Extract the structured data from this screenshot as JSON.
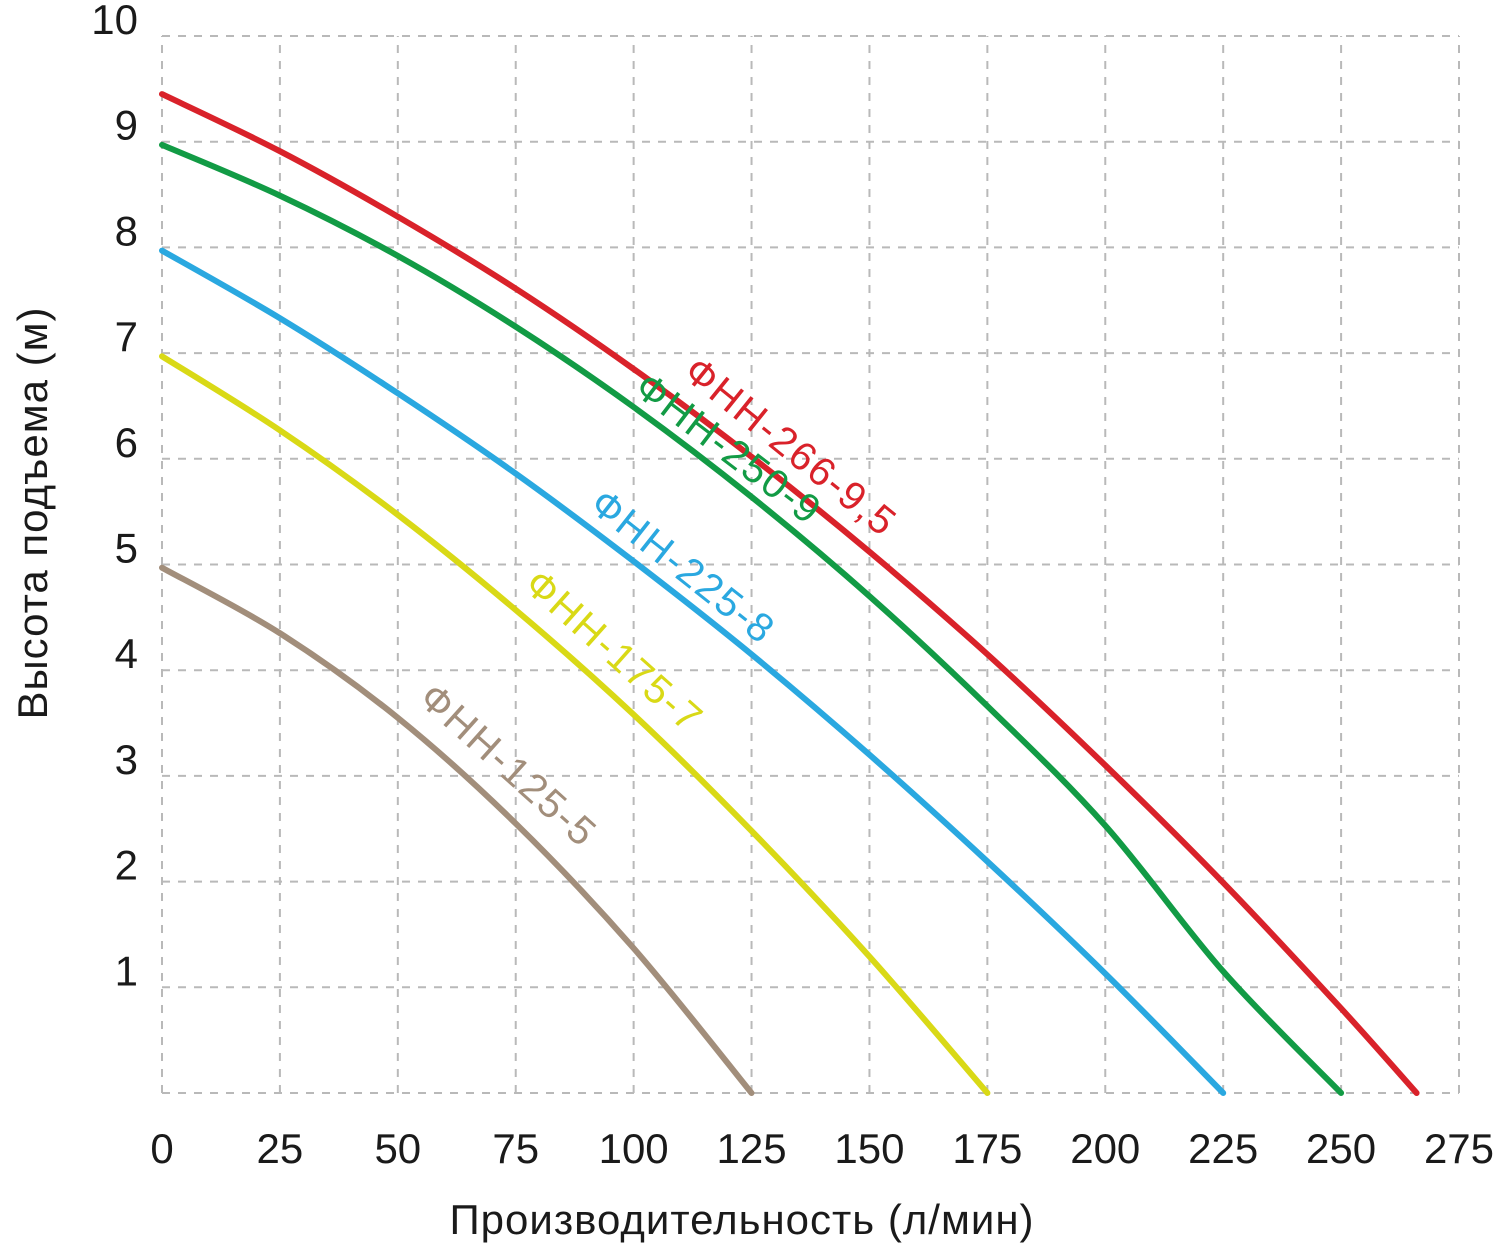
{
  "figure": {
    "background": "#ffffff",
    "grid_color": "#b9b9b9",
    "text_color": "#1a1a1a"
  },
  "chart_data": {
    "type": "line",
    "title": "",
    "xlabel": "Производительность (л/мин)",
    "ylabel": "Высота подъема (м)",
    "xlim": [
      0,
      275
    ],
    "ylim": [
      0,
      10
    ],
    "x_ticks": [
      0,
      25,
      50,
      75,
      100,
      125,
      150,
      175,
      200,
      225,
      250,
      275
    ],
    "y_ticks": [
      1,
      2,
      3,
      4,
      5,
      6,
      7,
      8,
      9,
      10
    ],
    "grid": true,
    "grid_style": "dashed",
    "legend_position": "inline-curve-labels",
    "series": [
      {
        "name": "ФНН-266-9,5",
        "color": "#d9222a",
        "label_q": 129,
        "label_offset": 32,
        "points": [
          [
            0,
            9.45
          ],
          [
            25,
            8.91
          ],
          [
            50,
            8.29
          ],
          [
            75,
            7.61
          ],
          [
            100,
            6.85
          ],
          [
            125,
            6.02
          ],
          [
            150,
            5.12
          ],
          [
            175,
            4.15
          ],
          [
            200,
            3.1
          ],
          [
            225,
            1.99
          ],
          [
            250,
            0.8
          ],
          [
            266,
            0
          ]
        ]
      },
      {
        "name": "ФНН-250-9",
        "color": "#129b45",
        "label_q": 117,
        "label_offset": 24,
        "points": [
          [
            0,
            8.97
          ],
          [
            25,
            8.49
          ],
          [
            50,
            7.92
          ],
          [
            75,
            7.25
          ],
          [
            100,
            6.49
          ],
          [
            125,
            5.64
          ],
          [
            150,
            4.7
          ],
          [
            175,
            3.66
          ],
          [
            200,
            2.53
          ],
          [
            225,
            1.15
          ],
          [
            250,
            0
          ]
        ]
      },
      {
        "name": "ФНН-225-8",
        "color": "#2aa8e0",
        "label_q": 107,
        "label_offset": 26,
        "points": [
          [
            0,
            7.97
          ],
          [
            25,
            7.33
          ],
          [
            50,
            6.62
          ],
          [
            75,
            5.86
          ],
          [
            100,
            5.03
          ],
          [
            125,
            4.15
          ],
          [
            150,
            3.2
          ],
          [
            175,
            2.19
          ],
          [
            200,
            1.13
          ],
          [
            225,
            0
          ]
        ]
      },
      {
        "name": "ФНН-175-7",
        "color": "#d9d916",
        "label_q": 91,
        "label_offset": 34,
        "points": [
          [
            0,
            6.97
          ],
          [
            25,
            6.27
          ],
          [
            50,
            5.47
          ],
          [
            75,
            4.57
          ],
          [
            100,
            3.58
          ],
          [
            125,
            2.48
          ],
          [
            150,
            1.29
          ],
          [
            175,
            0
          ]
        ]
      },
      {
        "name": "ФНН-125-5",
        "color": "#a28e7b",
        "label_q": 68,
        "label_offset": 38,
        "points": [
          [
            0,
            4.97
          ],
          [
            25,
            4.35
          ],
          [
            50,
            3.55
          ],
          [
            75,
            2.55
          ],
          [
            100,
            1.37
          ],
          [
            125,
            0
          ]
        ]
      }
    ]
  }
}
